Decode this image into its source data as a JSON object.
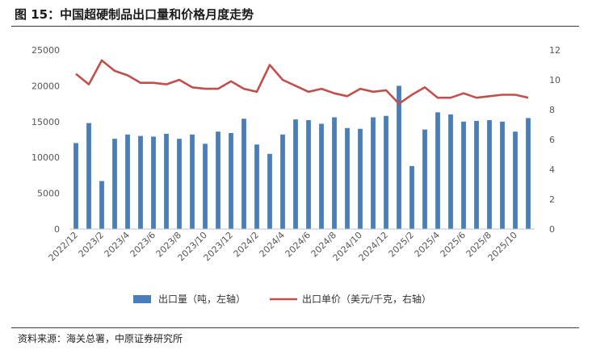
{
  "figure": {
    "title": "图 15：中国超硬制品出口量和价格月度走势",
    "source": "资料来源：海关总署，中原证券研究所"
  },
  "colors": {
    "bar": "#4a7ebb",
    "line": "#c0504d",
    "axis": "#bfbfbf",
    "text": "#555555"
  },
  "chart_data": {
    "type": "bar+line",
    "categories": [
      "2022/12",
      "2023/1",
      "2023/2",
      "2023/3",
      "2023/4",
      "2023/5",
      "2023/6",
      "2023/7",
      "2023/8",
      "2023/9",
      "2023/10",
      "2023/11",
      "2023/12",
      "2024/1",
      "2024/2",
      "2024/3",
      "2024/4",
      "2024/5",
      "2024/6",
      "2024/7",
      "2024/8",
      "2024/9",
      "2024/10",
      "2024/11",
      "2024/12",
      "2025/1",
      "2025/2",
      "2025/3",
      "2025/4",
      "2025/5",
      "2025/6",
      "2025/7",
      "2025/8",
      "2025/9",
      "2025/10",
      "2025/11"
    ],
    "x_tick_labels": [
      "2022/12",
      "2023/2",
      "2023/4",
      "2023/6",
      "2023/8",
      "2023/10",
      "2023/12",
      "2024/2",
      "2024/4",
      "2024/6",
      "2024/8",
      "2024/10",
      "2024/12",
      "2025/2",
      "2025/4",
      "2025/6",
      "2025/8",
      "2025/10"
    ],
    "series": [
      {
        "name": "出口量（吨，左轴）",
        "type": "bar",
        "axis": "left",
        "values": [
          12000,
          14800,
          6700,
          12600,
          13200,
          13000,
          12900,
          13300,
          12600,
          13200,
          11900,
          13600,
          13400,
          15400,
          11800,
          10500,
          13200,
          15300,
          15200,
          14700,
          15600,
          14100,
          14000,
          15600,
          15800,
          20000,
          8800,
          13900,
          16300,
          16000,
          15000,
          15100,
          15200,
          15000,
          13600,
          15500
        ]
      },
      {
        "name": "出口单价（美元/千克，右轴）",
        "type": "line",
        "axis": "right",
        "values": [
          10.4,
          9.7,
          11.3,
          10.6,
          10.3,
          9.8,
          9.8,
          9.7,
          10.0,
          9.5,
          9.4,
          9.4,
          9.9,
          9.4,
          9.2,
          11.0,
          10.0,
          9.6,
          9.2,
          9.4,
          9.1,
          8.9,
          9.4,
          9.2,
          9.3,
          8.4,
          9.0,
          9.5,
          8.8,
          8.8,
          9.1,
          8.8,
          8.9,
          9.0,
          9.0,
          8.8
        ]
      }
    ],
    "y_left": {
      "ylim": [
        0,
        25000
      ],
      "ticks": [
        "0",
        "5000",
        "10000",
        "15000",
        "20000",
        "25000"
      ]
    },
    "y_right": {
      "ylim": [
        0,
        12
      ],
      "ticks": [
        "0",
        "2",
        "4",
        "6",
        "8",
        "10",
        "12"
      ]
    },
    "legend": {
      "position": "bottom",
      "items": [
        "出口量（吨，左轴）",
        "出口单价（美元/千克，右轴）"
      ]
    },
    "grid": false
  }
}
